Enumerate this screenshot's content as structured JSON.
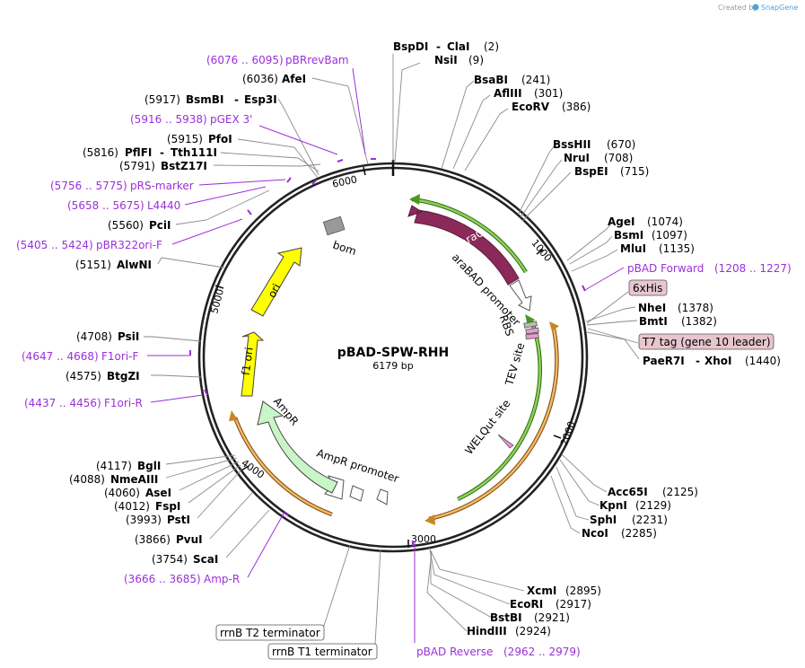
{
  "credit": {
    "prefix": "Created by",
    "brand": "SnapGene"
  },
  "plasmid": {
    "name": "pBAD-SPW-RHH",
    "length": "6179 bp"
  },
  "ticks": [
    "1000",
    "2000",
    "3000",
    "4000",
    "5000",
    "6000"
  ],
  "features": [
    {
      "name": "araC",
      "color": "#8b2a5a"
    },
    {
      "name": "araBAD promoter",
      "color": "#ffffff"
    },
    {
      "name": "RBS",
      "color": "#b9b9b9"
    },
    {
      "name": "TEV site",
      "color": "#e79acb"
    },
    {
      "name": "WELQut site",
      "color": "#e79acb"
    },
    {
      "name": "AmpR promoter",
      "color": "#ffffff"
    },
    {
      "name": "AmpR",
      "color": "#c9f6c6"
    },
    {
      "name": "f1 ori",
      "color": "#ffff00"
    },
    {
      "name": "ori",
      "color": "#ffff00"
    },
    {
      "name": "bom",
      "color": "#999999"
    }
  ],
  "enzymes_top": [
    {
      "name": "BspDI",
      "name2": "ClaI",
      "pos": "(2)"
    },
    {
      "name": "NsiI",
      "pos": "(9)"
    },
    {
      "name": "BsaBI",
      "pos": "(241)"
    },
    {
      "name": "AflIII",
      "pos": "(301)"
    },
    {
      "name": "EcoRV",
      "pos": "(386)"
    }
  ],
  "enzymes_right": [
    {
      "name": "BssHII",
      "pos": "(670)"
    },
    {
      "name": "NruI",
      "pos": "(708)"
    },
    {
      "name": "BspEI",
      "pos": "(715)"
    },
    {
      "name": "AgeI",
      "pos": "(1074)"
    },
    {
      "name": "BsmI",
      "pos": "(1097)"
    },
    {
      "name": "MluI",
      "pos": "(1135)"
    },
    {
      "name": "NheI",
      "pos": "(1378)"
    },
    {
      "name": "BmtI",
      "pos": "(1382)"
    },
    {
      "name": "PaeR7I",
      "name2": "XhoI",
      "pos": "(1440)"
    },
    {
      "name": "Acc65I",
      "pos": "(2125)"
    },
    {
      "name": "KpnI",
      "pos": "(2129)"
    },
    {
      "name": "SphI",
      "pos": "(2231)"
    },
    {
      "name": "NcoI",
      "pos": "(2285)"
    }
  ],
  "enzymes_bottom": [
    {
      "name": "XcmI",
      "pos": "(2895)"
    },
    {
      "name": "EcoRI",
      "pos": "(2917)"
    },
    {
      "name": "BstBI",
      "pos": "(2921)"
    },
    {
      "name": "HindIII",
      "pos": "(2924)"
    }
  ],
  "enzymes_left": [
    {
      "name": "AfeI",
      "pos": "(6036)"
    },
    {
      "name": "BsmBI",
      "name2": "Esp3I",
      "pos": "(5917)"
    },
    {
      "name": "PfoI",
      "pos": "(5915)"
    },
    {
      "name": "PflFI",
      "name2": "Tth111I",
      "pos": "(5816)"
    },
    {
      "name": "BstZ17I",
      "pos": "(5791)"
    },
    {
      "name": "PciI",
      "pos": "(5560)"
    },
    {
      "name": "AlwNI",
      "pos": "(5151)"
    },
    {
      "name": "PsiI",
      "pos": "(4708)"
    },
    {
      "name": "BtgZI",
      "pos": "(4575)"
    },
    {
      "name": "BglI",
      "pos": "(4117)"
    },
    {
      "name": "NmeAIII",
      "pos": "(4088)"
    },
    {
      "name": "AseI",
      "pos": "(4060)"
    },
    {
      "name": "FspI",
      "pos": "(4012)"
    },
    {
      "name": "PstI",
      "pos": "(3993)"
    },
    {
      "name": "PvuI",
      "pos": "(3866)"
    },
    {
      "name": "ScaI",
      "pos": "(3754)"
    }
  ],
  "primers": [
    {
      "name": "pBRrevBam",
      "range": "(6076 .. 6095)"
    },
    {
      "name": "pGEX 3'",
      "range": "(5916 .. 5938)"
    },
    {
      "name": "pRS-marker",
      "range": "(5756 .. 5775)"
    },
    {
      "name": "L4440",
      "range": "(5658 .. 5675)"
    },
    {
      "name": "pBR322ori-F",
      "range": "(5405 .. 5424)"
    },
    {
      "name": "F1ori-F",
      "range": "(4647 .. 4668)"
    },
    {
      "name": "F1ori-R",
      "range": "(4437 .. 4456)"
    },
    {
      "name": "Amp-R",
      "range": "(3666 .. 3685)"
    },
    {
      "name": "pBAD Forward",
      "range": "(1208 .. 1227)"
    },
    {
      "name": "pBAD Reverse",
      "range": "(2962 .. 2979)"
    }
  ],
  "boxed": [
    {
      "name": "6xHis",
      "color": "#e8c6cf"
    },
    {
      "name": "T7 tag (gene 10 leader)",
      "color": "#e8c6cf"
    },
    {
      "name": "rrnB T2 terminator",
      "color": "#ffffff"
    },
    {
      "name": "rrnB T1 terminator",
      "color": "#ffffff"
    }
  ],
  "colors": {
    "primer": "#9b30d9",
    "orf_green": "#6bbd2a",
    "orf_orange": "#e8a335",
    "backbone": "#222222"
  }
}
